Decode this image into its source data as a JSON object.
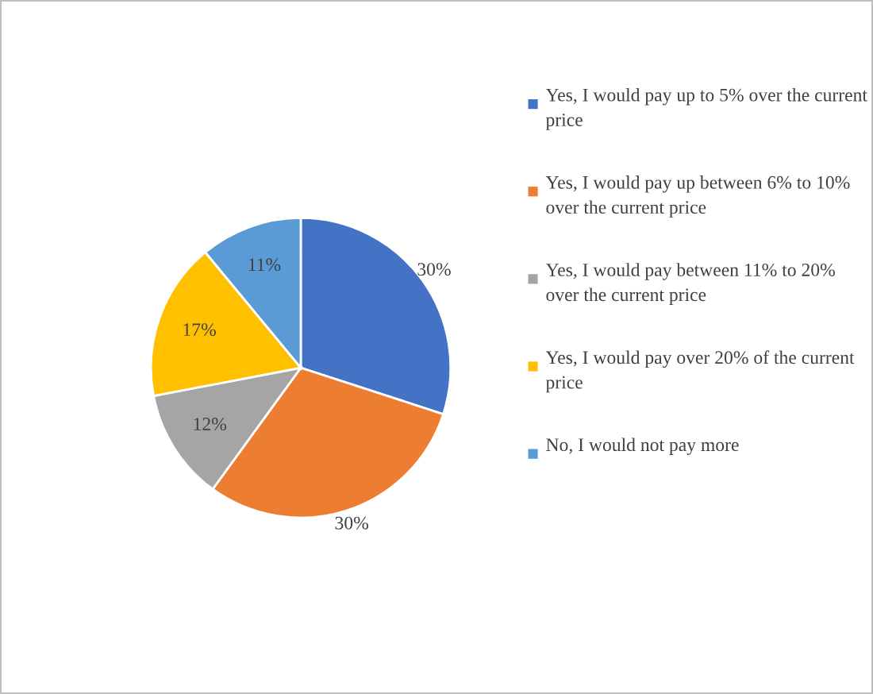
{
  "chart_data": {
    "type": "pie",
    "categories": [
      "Yes, I would pay up to 5% over the current price",
      "Yes, I would pay up between 6% to 10% over the current price",
      "Yes, I would pay between 11% to 20% over the current price",
      "Yes, I would pay over 20% of the current price",
      "No, I would not pay more"
    ],
    "values": [
      30,
      30,
      12,
      17,
      11
    ],
    "colors": [
      "#4472c4",
      "#ed7d31",
      "#a5a5a5",
      "#ffc000",
      "#5b9bd5"
    ],
    "value_labels": [
      "30%",
      "30%",
      "12%",
      "17%",
      "11%"
    ],
    "legend": "right"
  }
}
